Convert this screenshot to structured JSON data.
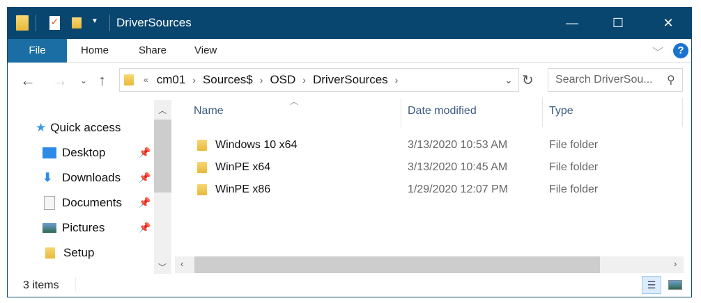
{
  "window": {
    "title": "DriverSources",
    "minimize": "—",
    "maximize": "☐",
    "close": "✕"
  },
  "ribbon": {
    "tabs": [
      "File",
      "Home",
      "Share",
      "View"
    ],
    "help": "?"
  },
  "address": {
    "overflow": "«",
    "crumbs": [
      "cm01",
      "Sources$",
      "OSD",
      "DriverSources"
    ]
  },
  "search": {
    "placeholder": "Search DriverSou..."
  },
  "nav": {
    "items": [
      {
        "label": "Quick access",
        "icon": "star-icon"
      },
      {
        "label": "Desktop",
        "icon": "desktop-icon",
        "pinned": true
      },
      {
        "label": "Downloads",
        "icon": "download-icon",
        "pinned": true
      },
      {
        "label": "Documents",
        "icon": "documents-icon",
        "pinned": true
      },
      {
        "label": "Pictures",
        "icon": "pictures-icon",
        "pinned": true
      },
      {
        "label": "Setup",
        "icon": "folder-icon",
        "pinned": false
      }
    ]
  },
  "columns": [
    "Name",
    "Date modified",
    "Type"
  ],
  "files": [
    {
      "name": "Windows 10 x64",
      "date": "3/13/2020 10:53 AM",
      "type": "File folder"
    },
    {
      "name": "WinPE x64",
      "date": "3/13/2020 10:45 AM",
      "type": "File folder"
    },
    {
      "name": "WinPE x86",
      "date": "1/29/2020 12:07 PM",
      "type": "File folder"
    }
  ],
  "status": {
    "count": "3 items"
  },
  "colors": {
    "titlebar": "#08466f",
    "file_tab": "#1a6ea3"
  }
}
